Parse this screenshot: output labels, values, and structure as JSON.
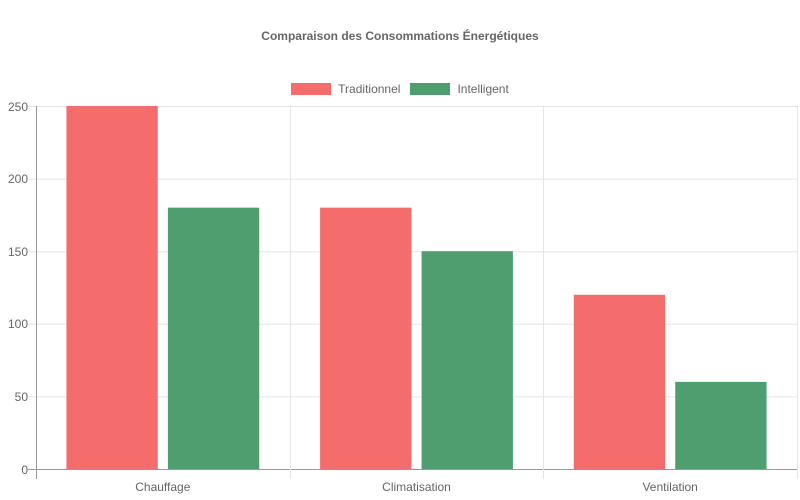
{
  "chart_data": {
    "type": "bar",
    "title": "Comparaison des Consommations Énergétiques",
    "categories": [
      "Chauffage",
      "Climatisation",
      "Ventilation"
    ],
    "series": [
      {
        "name": "Traditionnel",
        "color": "#f56c6c",
        "values": [
          250,
          180,
          120
        ]
      },
      {
        "name": "Intelligent",
        "color": "#4f9e70",
        "values": [
          180,
          150,
          60
        ]
      }
    ],
    "xlabel": "",
    "ylabel": "",
    "ylim": [
      0,
      250
    ],
    "yticks": [
      0,
      50,
      100,
      150,
      200,
      250
    ],
    "grid": true,
    "legend_position": "top"
  }
}
